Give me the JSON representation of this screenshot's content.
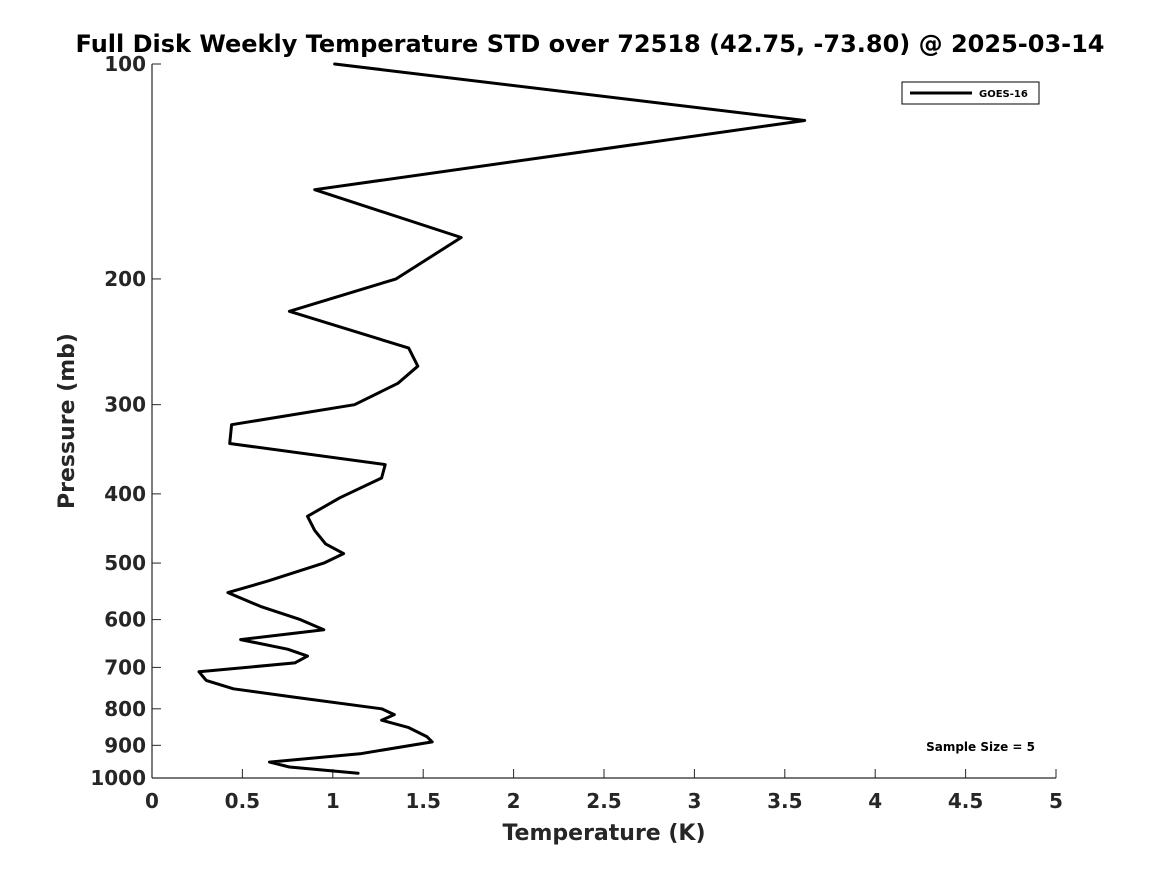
{
  "chart_data": {
    "type": "line",
    "title": "Full Disk Weekly Temperature STD over 72518 (42.75, -73.80) @ 2025-03-14",
    "xlabel": "Temperature (K)",
    "ylabel": "Pressure (mb)",
    "xlim": [
      0,
      5
    ],
    "ylim": [
      100,
      1000
    ],
    "y_scale": "log",
    "y_reversed": true,
    "x_ticks": [
      "0",
      "0.5",
      "1",
      "1.5",
      "2",
      "2.5",
      "3",
      "3.5",
      "4",
      "4.5",
      "5"
    ],
    "x_tick_values": [
      0,
      0.5,
      1,
      1.5,
      2,
      2.5,
      3,
      3.5,
      4,
      4.5,
      5
    ],
    "y_ticks": [
      "100",
      "200",
      "300",
      "400",
      "500",
      "600",
      "700",
      "800",
      "900",
      "1000"
    ],
    "y_tick_values": [
      100,
      200,
      300,
      400,
      500,
      600,
      700,
      800,
      900,
      1000
    ],
    "grid": false,
    "legend_position": "top-right",
    "series": [
      {
        "name": "GOES-16",
        "color": "#000000",
        "points": [
          [
            1.01,
            100
          ],
          [
            3.61,
            120
          ],
          [
            0.9,
            150
          ],
          [
            1.71,
            175
          ],
          [
            1.35,
            200
          ],
          [
            0.76,
            222
          ],
          [
            1.42,
            250
          ],
          [
            1.47,
            265
          ],
          [
            1.36,
            280
          ],
          [
            1.12,
            300
          ],
          [
            0.44,
            320
          ],
          [
            0.43,
            340
          ],
          [
            1.29,
            364
          ],
          [
            1.27,
            380
          ],
          [
            1.04,
            405
          ],
          [
            0.86,
            430
          ],
          [
            0.9,
            450
          ],
          [
            0.96,
            470
          ],
          [
            1.06,
            485
          ],
          [
            0.95,
            500
          ],
          [
            0.64,
            530
          ],
          [
            0.42,
            550
          ],
          [
            0.6,
            575
          ],
          [
            0.82,
            600
          ],
          [
            0.95,
            620
          ],
          [
            0.49,
            640
          ],
          [
            0.75,
            660
          ],
          [
            0.86,
            675
          ],
          [
            0.79,
            690
          ],
          [
            0.26,
            710
          ],
          [
            0.3,
            730
          ],
          [
            0.45,
            750
          ],
          [
            0.78,
            770
          ],
          [
            1.27,
            800
          ],
          [
            1.34,
            815
          ],
          [
            1.27,
            830
          ],
          [
            1.42,
            850
          ],
          [
            1.52,
            875
          ],
          [
            1.55,
            890
          ],
          [
            1.15,
            925
          ],
          [
            0.65,
            950
          ],
          [
            0.76,
            965
          ],
          [
            1.14,
            985
          ]
        ]
      }
    ],
    "annotations": [
      {
        "text": "Sample Size = 5",
        "position": "bottom-right"
      }
    ]
  }
}
